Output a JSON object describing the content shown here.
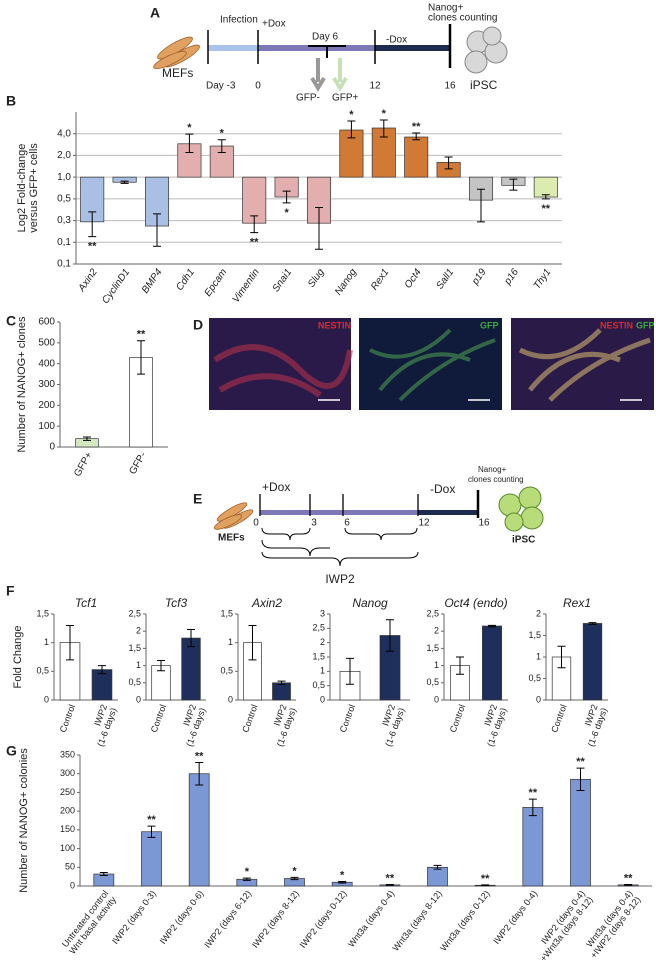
{
  "panel_labels": [
    "A",
    "B",
    "C",
    "D",
    "E",
    "F",
    "G"
  ],
  "timeline_a": {
    "labels": [
      "Infection",
      "+Dox",
      "Day 6",
      "-Dox",
      "Nanog+",
      "clones counting",
      "MEFs",
      "Day -3",
      "0",
      "12",
      "16",
      "GFP-",
      "GFP+",
      "iPSC"
    ]
  },
  "images_d": {
    "labels": [
      [
        "NESTIN"
      ],
      [
        "GFP"
      ],
      [
        "NESTIN",
        "GFP"
      ]
    ]
  },
  "timeline_e": {
    "labels": [
      "+Dox",
      "-Dox",
      "Nanog+",
      "clones counting",
      "MEFs",
      "0",
      "3",
      "6",
      "12",
      "16",
      "iPSC",
      "IWP2"
    ]
  },
  "chart_data": [
    {
      "type": "bar",
      "log_scale": true,
      "grid": true,
      "ylabel": [
        "Log2 Fold-change",
        "versus GFP+ cells"
      ],
      "categories": [
        "Axin2",
        "CyclinD1",
        "BMP4",
        "Cdh1",
        "Epcam",
        "Vimentin",
        "Snai1",
        "Slug",
        "Nanog",
        "Rex1",
        "Oct4",
        "Sall1",
        "p19",
        "p16",
        "Thy1"
      ],
      "values": [
        0.24,
        0.85,
        0.21,
        2.9,
        2.7,
        0.23,
        0.53,
        0.23,
        4.5,
        4.8,
        3.6,
        1.6,
        0.48,
        0.77,
        0.53
      ],
      "error_low": [
        0.15,
        0.82,
        0.11,
        2.2,
        2.2,
        0.17,
        0.44,
        0.1,
        3.5,
        3.6,
        3.3,
        1.3,
        0.24,
        0.66,
        0.5
      ],
      "error_high": [
        0.33,
        0.88,
        0.31,
        3.95,
        3.3,
        0.29,
        0.64,
        0.38,
        6.0,
        6.2,
        4.1,
        1.9,
        0.68,
        0.94,
        0.57
      ],
      "colors": [
        "#a9bfe3",
        "#a9bfe3",
        "#a9bfe3",
        "#e3aeae",
        "#e3aeae",
        "#e3aeae",
        "#e3aeae",
        "#e3aeae",
        "#d07a35",
        "#d07a35",
        "#d07a35",
        "#d07a35",
        "#c4c4c4",
        "#c4c4c4",
        "#dcebb0"
      ],
      "significance": [
        "**",
        null,
        null,
        "*",
        "*",
        "**",
        "*",
        null,
        "*",
        "*",
        "**",
        null,
        null,
        null,
        "**"
      ],
      "ylim": [
        0.0625,
        8
      ],
      "yticks": [
        {
          "value": 0.0625,
          "label": "0,1"
        },
        {
          "value": 0.125,
          "label": "0,1"
        },
        {
          "value": 0.25,
          "label": "0,3"
        },
        {
          "value": 0.5,
          "label": "0,5"
        },
        {
          "value": 1,
          "label": "1,0"
        },
        {
          "value": 2,
          "label": "2,0"
        },
        {
          "value": 4,
          "label": "4,0"
        }
      ]
    },
    {
      "type": "bar",
      "ylabel": [
        "Number of NANOG+ clones"
      ],
      "categories": [
        "GFP+",
        "GFP-"
      ],
      "values": [
        40,
        430
      ],
      "errors": [
        8,
        80
      ],
      "colors": [
        "#d5e8c4",
        "#ffffff"
      ],
      "significance": [
        null,
        "**"
      ],
      "ylim": [
        0,
        600
      ],
      "yticks": [
        0,
        100,
        200,
        300,
        400,
        500,
        600
      ]
    },
    {
      "type": "bar",
      "title": "Tcf1",
      "ylabel": [
        "Fold Change"
      ],
      "categories": [
        [
          "Control"
        ],
        [
          "IWP2",
          "(1-6 days)"
        ]
      ],
      "values": [
        1,
        0.53
      ],
      "errors": [
        0.3,
        0.07
      ],
      "colors": [
        "#ffffff",
        "#1f2f5c"
      ],
      "ylim": [
        0,
        1.5
      ],
      "yticks": [
        0,
        {
          "value": 0.5,
          "label": "0,5"
        },
        1,
        {
          "value": 1.5,
          "label": "1,5"
        }
      ]
    },
    {
      "type": "bar",
      "title": "Tcf3",
      "categories": [
        [
          "Control"
        ],
        [
          "IWP2",
          "(1-6 days)"
        ]
      ],
      "values": [
        1,
        1.8
      ],
      "errors": [
        0.15,
        0.25
      ],
      "colors": [
        "#ffffff",
        "#1f2f5c"
      ],
      "ylim": [
        0,
        2.5
      ],
      "yticks": [
        0,
        {
          "value": 0.5,
          "label": "0,5"
        },
        1,
        {
          "value": 1.5,
          "label": "1,5"
        },
        2,
        {
          "value": 2.5,
          "label": "2,5"
        }
      ]
    },
    {
      "type": "bar",
      "title": "Axin2",
      "categories": [
        [
          "Control"
        ],
        [
          "IWP2",
          "(1-6 days)"
        ]
      ],
      "values": [
        1,
        0.3
      ],
      "errors": [
        0.3,
        0.03
      ],
      "colors": [
        "#ffffff",
        "#1f2f5c"
      ],
      "ylim": [
        0,
        1.5
      ],
      "yticks": [
        0,
        {
          "value": 0.5,
          "label": "0,5"
        },
        1,
        {
          "value": 1.5,
          "label": "1,5"
        }
      ]
    },
    {
      "type": "bar",
      "title": "Nanog",
      "categories": [
        [
          "Control"
        ],
        [
          "IWP2",
          "(1-6 days)"
        ]
      ],
      "values": [
        1,
        2.25
      ],
      "errors": [
        0.45,
        0.55
      ],
      "colors": [
        "#ffffff",
        "#1f2f5c"
      ],
      "ylim": [
        0,
        3
      ],
      "yticks": [
        0,
        {
          "value": 0.5,
          "label": "0,5"
        },
        1,
        {
          "value": 1.5,
          "label": "1,5"
        },
        2,
        {
          "value": 2.5,
          "label": "2,5"
        },
        3
      ]
    },
    {
      "type": "bar",
      "title": "Oct4 (endo)",
      "categories": [
        [
          "Control"
        ],
        [
          "IWP2",
          "(1-6 days)"
        ]
      ],
      "values": [
        1,
        2.15
      ],
      "errors": [
        0.25,
        0.02
      ],
      "colors": [
        "#ffffff",
        "#1f2f5c"
      ],
      "ylim": [
        0,
        2.5
      ],
      "yticks": [
        0,
        {
          "value": 0.5,
          "label": "0,5"
        },
        1,
        {
          "value": 1.5,
          "label": "1,5"
        },
        2,
        {
          "value": 2.5,
          "label": "2,5"
        }
      ]
    },
    {
      "type": "bar",
      "title": "Rex1",
      "categories": [
        [
          "Control"
        ],
        [
          "IWP2",
          "(1-6 days)"
        ]
      ],
      "values": [
        1,
        1.78
      ],
      "errors": [
        0.25,
        0.02
      ],
      "colors": [
        "#ffffff",
        "#1f2f5c"
      ],
      "ylim": [
        0,
        2
      ],
      "yticks": [
        0,
        {
          "value": 0.5,
          "label": "0,5"
        },
        1,
        {
          "value": 1.5,
          "label": "1,5"
        },
        2
      ]
    },
    {
      "type": "bar",
      "ylabel": [
        "Number of NANOG+ colonies"
      ],
      "color": "#7b97d4",
      "categories": [
        [
          "Untreated control",
          "Wnt basal activity"
        ],
        [
          "IWP2  (days 0-3)"
        ],
        [
          "IWP2 (days 0-6)"
        ],
        [
          "IWP2 (days 6-12)"
        ],
        [
          "IWP2 (days 8-12)"
        ],
        [
          "IWP2 (days 0-12)"
        ],
        [
          "Wnt3a (days 0-4)"
        ],
        [
          "Wnt3a (days 8-12)"
        ],
        [
          "Wnt3a (days 0-12)"
        ],
        [
          "IWP2 (days 0-4)"
        ],
        [
          "IWP2 (days 0-4)",
          "+Wnt3a (days 8-12)"
        ],
        [
          "Wnt3a (days 0-4)",
          "+IWP2 (days 8-12)"
        ]
      ],
      "values": [
        32,
        145,
        300,
        18,
        20,
        10,
        3,
        50,
        2,
        210,
        285,
        3
      ],
      "errors": [
        4,
        15,
        30,
        3,
        3,
        2,
        1,
        5,
        1,
        22,
        30,
        1
      ],
      "significance": [
        null,
        "**",
        "**",
        "*",
        "*",
        "*",
        "**",
        null,
        "**",
        "**",
        "**",
        "**"
      ],
      "ylim": [
        0,
        350
      ],
      "yticks": [
        0,
        50,
        100,
        150,
        200,
        250,
        300,
        350
      ]
    }
  ]
}
